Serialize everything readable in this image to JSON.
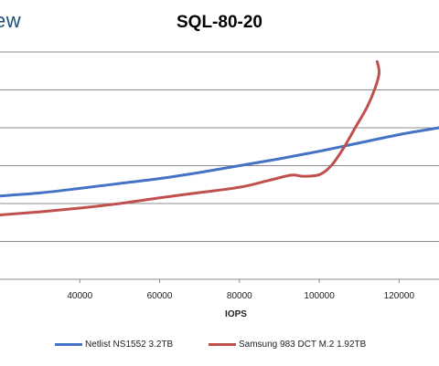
{
  "header": {
    "brand_fragment": "ew"
  },
  "chart_data": {
    "type": "line",
    "title": "SQL-80-20",
    "xlabel": "IOPS",
    "ylabel": "",
    "xlim": [
      20000,
      130000
    ],
    "ylim": [
      0,
      600
    ],
    "x_ticks": [
      "40000",
      "60000",
      "80000",
      "100000",
      "120000"
    ],
    "grid": true,
    "legend_position": "bottom",
    "series": [
      {
        "name": "Netlist NS1552 3.2TB",
        "color": "#4472c4",
        "x": [
          20000,
          30000,
          40000,
          50000,
          60000,
          70000,
          80000,
          90000,
          100000,
          110000,
          120000,
          130000
        ],
        "y": [
          220,
          228,
          240,
          253,
          266,
          282,
          300,
          318,
          338,
          360,
          382,
          400
        ]
      },
      {
        "name": "Samsung 983 DCT M.2 1.92TB",
        "color": "#c0504d",
        "x": [
          20000,
          30000,
          40000,
          50000,
          60000,
          70000,
          80000,
          87000,
          93000,
          96000,
          100000,
          103000,
          106000,
          109000,
          112000,
          114000,
          115000,
          114500
        ],
        "y": [
          170,
          178,
          188,
          200,
          215,
          229,
          243,
          260,
          275,
          272,
          276,
          300,
          345,
          400,
          455,
          505,
          545,
          575
        ]
      }
    ]
  }
}
